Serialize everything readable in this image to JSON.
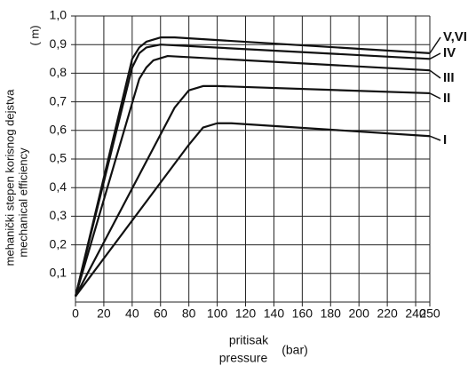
{
  "chart_data": {
    "type": "line",
    "y_label": "mehanički stepen korisnog dejstva",
    "y_label_en": "mechanical  efficiency",
    "y_symbol": "(  m)",
    "x_label": "pritisak",
    "x_label_en": "pressure",
    "x_unit": "(bar)",
    "xlim": [
      0,
      250
    ],
    "ylim": [
      0,
      1
    ],
    "xticks": [
      0,
      20,
      40,
      60,
      80,
      100,
      120,
      140,
      160,
      180,
      200,
      220,
      240,
      250
    ],
    "yticks": [
      {
        "value": 0.1,
        "label": "0,1"
      },
      {
        "value": 0.2,
        "label": "0,2"
      },
      {
        "value": 0.3,
        "label": "0,3"
      },
      {
        "value": 0.4,
        "label": "0,4"
      },
      {
        "value": 0.5,
        "label": "0,5"
      },
      {
        "value": 0.6,
        "label": "0,6"
      },
      {
        "value": 0.7,
        "label": "0,7"
      },
      {
        "value": 0.8,
        "label": "0,8"
      },
      {
        "value": 0.9,
        "label": "0,9"
      },
      {
        "value": 1.0,
        "label": "1,0"
      }
    ],
    "grid": true,
    "series": [
      {
        "name": "V,VI",
        "color": "#111111",
        "x": [
          0,
          40,
          45,
          50,
          60,
          70,
          250
        ],
        "values": [
          0.02,
          0.85,
          0.89,
          0.91,
          0.925,
          0.925,
          0.87
        ]
      },
      {
        "name": "IV",
        "color": "#111111",
        "x": [
          0,
          40,
          45,
          50,
          60,
          250
        ],
        "values": [
          0.02,
          0.82,
          0.87,
          0.89,
          0.9,
          0.85
        ]
      },
      {
        "name": "III",
        "color": "#111111",
        "x": [
          0,
          45,
          50,
          55,
          65,
          250
        ],
        "values": [
          0.02,
          0.78,
          0.82,
          0.845,
          0.86,
          0.81
        ]
      },
      {
        "name": "II",
        "color": "#111111",
        "x": [
          0,
          70,
          80,
          90,
          100,
          250
        ],
        "values": [
          0.02,
          0.68,
          0.74,
          0.755,
          0.755,
          0.73
        ]
      },
      {
        "name": "I",
        "color": "#111111",
        "x": [
          0,
          80,
          90,
          100,
          110,
          250
        ],
        "values": [
          0.02,
          0.55,
          0.61,
          0.625,
          0.625,
          0.58
        ]
      }
    ]
  }
}
